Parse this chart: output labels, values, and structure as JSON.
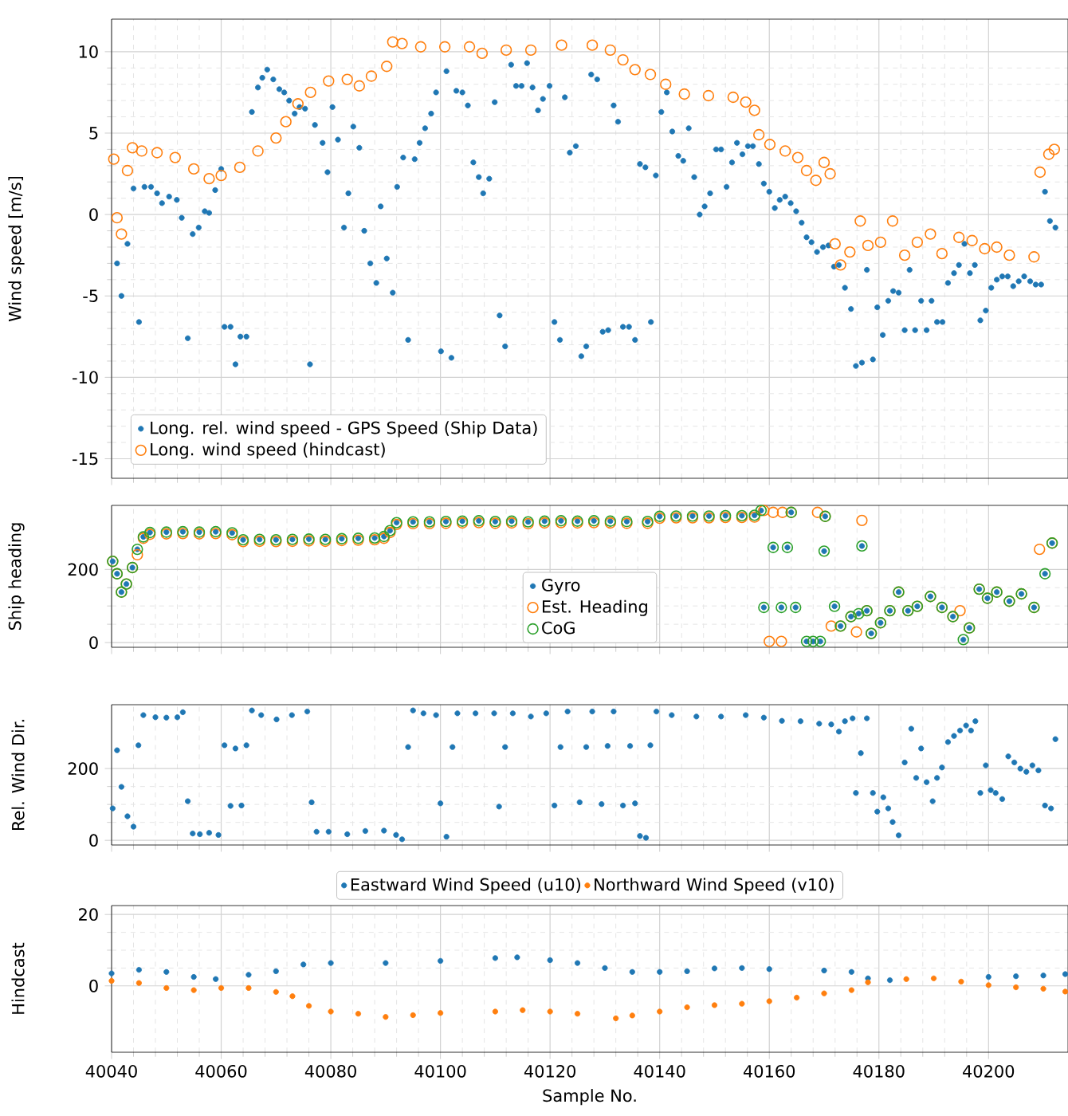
{
  "chart_data": [
    {
      "type": "scatter",
      "ylabel": "Wind speed [m/s]",
      "xlim": [
        40040,
        40214.5
      ],
      "ylim": [
        -16.2,
        12
      ],
      "xticks": [
        40040,
        40060,
        40080,
        40100,
        40120,
        40140,
        40160,
        40180,
        40200
      ],
      "yticks": [
        -15,
        -10,
        -5,
        0,
        5,
        10
      ],
      "tick_labels": "y",
      "grid": true,
      "legend": "bottom left",
      "series": [
        {
          "name": "Long. rel. wind speed - GPS Speed (Ship Data)",
          "color": "#1f77b4",
          "marker": "dot",
          "x": [
            40041,
            40041.8,
            40042.9,
            40044,
            40045,
            40046,
            40047.2,
            40048.3,
            40049.2,
            40050.5,
            40051.9,
            40052.8,
            40053.9,
            40054.8,
            40055.9,
            40057,
            40057.8,
            40058.9,
            40060,
            40060.6,
            40061.7,
            40062.6,
            40063.5,
            40064.6,
            40065.6,
            40066.7,
            40067.5,
            40068.4,
            40069.5,
            40070.6,
            40071.5,
            40072.4,
            40073.4,
            40074.3,
            40075.3,
            40076.2,
            40077.1,
            40078.5,
            40079.4,
            40080.3,
            40081.3,
            40082.4,
            40083.2,
            40084.1,
            40085.2,
            40086.1,
            40087.2,
            40088.3,
            40089.1,
            40090.2,
            40091.3,
            40092.1,
            40093.2,
            40094.1,
            40095.3,
            40096.2,
            40097.2,
            40098.3,
            40099.2,
            40100.1,
            40101.1,
            40102,
            40102.9,
            40104,
            40105,
            40106,
            40107,
            40107.8,
            40108.9,
            40109.9,
            40110.8,
            40111.8,
            40112.9,
            40113.8,
            40114.8,
            40115.8,
            40116.8,
            40117.8,
            40118.7,
            40119.9,
            40120.8,
            40121.8,
            40122.7,
            40123.6,
            40124.7,
            40125.7,
            40126.6,
            40127.5,
            40128.6,
            40129.6,
            40130.6,
            40131.6,
            40132.4,
            40133.3,
            40134.4,
            40135.5,
            40136.4,
            40137.4,
            40138.4,
            40139.3,
            40140.3,
            40141.3,
            40142.3,
            40143.4,
            40144.3,
            40145.3,
            40146.3,
            40147.3,
            40148.2,
            40149.2,
            40150.3,
            40151.2,
            40152.2,
            40153.2,
            40154.1,
            40155.1,
            40156.1,
            40157,
            40158.1,
            40159,
            40160,
            40161,
            40161.9,
            40162.9,
            40163.9,
            40164.9,
            40165.9,
            40166.8,
            40167.7,
            40168.7,
            40169.8,
            40170.8,
            40171.8,
            40172.7,
            40173.8,
            40174.9,
            40175.8,
            40176.9,
            40177.8,
            40178.9,
            40179.7,
            40180.7,
            40181.7,
            40182.6,
            40183.6,
            40184.7,
            40185.6,
            40186.6,
            40187.7,
            40188.7,
            40189.6,
            40190.6,
            40191.6,
            40192.6,
            40193.7,
            40194.6,
            40195.6,
            40196.6,
            40197.5,
            40198.5,
            40199.5,
            40200.5,
            40201.5,
            40202.5,
            40203.5,
            40204.5,
            40205.5,
            40206.5,
            40207.6,
            40208.6,
            40209.6,
            40210.3,
            40211.2,
            40212.2
          ],
          "values": [
            -3.0,
            -5.0,
            -1.8,
            1.6,
            -6.6,
            1.7,
            1.7,
            1.3,
            0.7,
            1.1,
            0.9,
            -0.2,
            -7.6,
            -1.2,
            -0.8,
            0.2,
            0.1,
            1.5,
            2.8,
            -6.9,
            -6.9,
            -9.2,
            -7.5,
            -7.5,
            6.3,
            7.8,
            8.4,
            8.9,
            8.3,
            7.7,
            7.5,
            7.0,
            6.2,
            6.6,
            6.5,
            -9.2,
            5.5,
            4.4,
            2.6,
            6.6,
            4.6,
            -0.8,
            1.3,
            5.4,
            4.1,
            -1.0,
            -3.0,
            -4.2,
            0.5,
            -2.7,
            -4.8,
            1.7,
            3.5,
            -7.7,
            3.4,
            4.4,
            5.3,
            6.2,
            7.5,
            -8.4,
            8.8,
            -8.8,
            7.6,
            7.5,
            6.7,
            3.2,
            2.3,
            1.3,
            2.2,
            6.9,
            -6.2,
            -8.1,
            9.2,
            7.9,
            7.9,
            9.3,
            7.8,
            6.4,
            7.1,
            7.9,
            -6.6,
            -7.7,
            7.2,
            3.8,
            4.2,
            -8.7,
            -8.1,
            8.6,
            8.3,
            -7.2,
            -7.1,
            6.7,
            5.7,
            -6.9,
            -6.9,
            -7.7,
            3.1,
            2.9,
            -6.6,
            2.4,
            6.3,
            7.5,
            5.1,
            3.6,
            3.3,
            5.3,
            2.3,
            0.0,
            0.5,
            1.3,
            4.0,
            4.0,
            1.7,
            3.2,
            4.4,
            3.7,
            4.2,
            4.2,
            3.1,
            1.9,
            1.4,
            0.4,
            0.9,
            1.1,
            0.7,
            0.2,
            -0.5,
            -1.4,
            -1.7,
            -2.3,
            -2.0,
            -1.9,
            -3.2,
            -3.1,
            -4.5,
            -5.8,
            -9.3,
            -9.1,
            -3.4,
            -8.9,
            -5.7,
            -7.4,
            -5.3,
            -4.7,
            -4.8,
            -7.1,
            -3.4,
            -7.1,
            -5.3,
            -7.1,
            -5.3,
            -6.6,
            -6.6,
            -4.2,
            -3.6,
            -3.1,
            -1.8,
            -3.6,
            -3.1,
            -6.5,
            -5.9,
            -4.5,
            -4.0,
            -3.8,
            -3.8,
            -4.4,
            -4.1,
            -3.8,
            -4.1,
            -4.3,
            -4.3,
            1.4,
            -0.4,
            -0.8
          ]
        },
        {
          "name": "Long. wind speed (hindcast)",
          "color": "#ff7f0e",
          "marker": "circle",
          "x": [
            40040.4,
            40041,
            40041.8,
            40042.9,
            40043.8,
            40045.5,
            40048.3,
            40051.6,
            40055,
            40057.8,
            40060,
            40063.4,
            40066.7,
            40070,
            40071.8,
            40074,
            40076.3,
            40079.6,
            40083,
            40085.2,
            40087.4,
            40090.2,
            40091.3,
            40093,
            40096.4,
            40100.8,
            40105.3,
            40107.6,
            40112,
            40116.5,
            40122.1,
            40127.7,
            40131,
            40133.3,
            40135.5,
            40138.3,
            40141.1,
            40144.5,
            40148.9,
            40153.4,
            40155.7,
            40157.3,
            40158.1,
            40160.1,
            40162.9,
            40165.2,
            40166.8,
            40168.5,
            40170,
            40171.1,
            40172,
            40173,
            40174.7,
            40176.6,
            40178,
            40180.3,
            40182.5,
            40184.7,
            40187,
            40189.4,
            40191.5,
            40194.6,
            40197,
            40199.3,
            40201.5,
            40203.8,
            40208.3,
            40209.4,
            40211,
            40212
          ],
          "values": [
            3.4,
            -0.2,
            -1.2,
            2.7,
            4.1,
            3.9,
            3.8,
            3.5,
            2.8,
            2.2,
            2.4,
            2.9,
            3.9,
            4.7,
            5.7,
            6.8,
            7.5,
            8.2,
            8.3,
            7.9,
            8.5,
            9.1,
            10.6,
            10.5,
            10.3,
            10.3,
            10.3,
            9.9,
            10.1,
            10.1,
            10.4,
            10.4,
            10.1,
            9.5,
            8.9,
            8.6,
            8.0,
            7.4,
            7.3,
            7.2,
            6.9,
            6.4,
            4.9,
            4.3,
            3.9,
            3.5,
            2.7,
            2.1,
            3.2,
            2.5,
            -1.8,
            -3.1,
            -2.3,
            -0.4,
            -1.9,
            -1.7,
            -0.4,
            -2.5,
            -1.7,
            -1.2,
            -2.4,
            -1.4,
            -1.6,
            -2.1,
            -2.0,
            -2.5,
            -2.6,
            2.6,
            3.7,
            4.0
          ]
        }
      ]
    },
    {
      "type": "scatter",
      "ylabel": "Ship heading",
      "xlim": [
        40040,
        40214.5
      ],
      "ylim": [
        -13,
        375
      ],
      "xticks": [
        40040,
        40060,
        40080,
        40100,
        40120,
        40140,
        40160,
        40180,
        40200
      ],
      "yticks": [
        0,
        200
      ],
      "tick_labels": "y",
      "grid": true,
      "legend": "bottom",
      "series": [
        {
          "name": "Gyro",
          "color": "#1f77b4",
          "marker": "dot",
          "x": [
            40040.2,
            40041,
            40041.8,
            40042.7,
            40043.8,
            40044.7,
            40045.8,
            40047,
            40050,
            40053,
            40056,
            40059,
            40062,
            40064,
            40067,
            40070,
            40073,
            40076,
            40079,
            40082,
            40085,
            40088,
            40089.7,
            40090.8,
            40092,
            40095,
            40098,
            40101,
            40104,
            40107,
            40110,
            40113,
            40116,
            40119,
            40122,
            40125,
            40128,
            40131,
            40134,
            40137.8,
            40140,
            40143,
            40146,
            40149,
            40152,
            40155,
            40157.3,
            40158.5,
            40159,
            40160.7,
            40162.2,
            40163.3,
            40164,
            40164.8,
            40166.8,
            40168,
            40169.3,
            40170,
            40170.2,
            40171.9,
            40173,
            40174.9,
            40176.3,
            40176.9,
            40177.8,
            40178.6,
            40180.3,
            40182,
            40183.6,
            40185.3,
            40187,
            40189.4,
            40191.5,
            40193.5,
            40195.4,
            40196.5,
            40198.3,
            40199.8,
            40201.5,
            40203.8,
            40206,
            40208.3,
            40210.3,
            40211.6
          ],
          "values": [
            222,
            188,
            138,
            160,
            205,
            255,
            289,
            301,
            302,
            303,
            302,
            303,
            300,
            281,
            282,
            281,
            282,
            283,
            282,
            284,
            285,
            286,
            290,
            306,
            328,
            330,
            330,
            331,
            332,
            333,
            331,
            332,
            330,
            332,
            333,
            332,
            333,
            332,
            331,
            331,
            345,
            346,
            346,
            346,
            347,
            347,
            348,
            361,
            96,
            260,
            96,
            260,
            356,
            96,
            3,
            3,
            3,
            250,
            345,
            99,
            45,
            71,
            79,
            264,
            87,
            25,
            54,
            87,
            138,
            87,
            99,
            126,
            96,
            71,
            8,
            40,
            146,
            121,
            138,
            113,
            133,
            96,
            188,
            272
          ]
        },
        {
          "name": "Est. Heading",
          "color": "#ff7f0e",
          "marker": "circle",
          "x": [
            40040.2,
            40041,
            40041.8,
            40042.7,
            40043.8,
            40044.7,
            40045.8,
            40047,
            40050,
            40053,
            40056,
            40059,
            40062,
            40064,
            40067,
            40070,
            40073,
            40076,
            40079,
            40082,
            40085,
            40088,
            40089.7,
            40090.8,
            40092,
            40095,
            40098,
            40101,
            40104,
            40107,
            40110,
            40113,
            40116,
            40119,
            40122,
            40125,
            40128,
            40131,
            40134,
            40137.8,
            40140,
            40143,
            40146,
            40149,
            40152,
            40155,
            40157.3,
            40159,
            40160,
            40160.7,
            40162.2,
            40162.4,
            40164,
            40168.8,
            40170.2,
            40171.3,
            40173,
            40174.9,
            40175.9,
            40176.9,
            40177.8,
            40178.6,
            40180.3,
            40182,
            40183.6,
            40185.3,
            40187,
            40189.4,
            40191.5,
            40193.5,
            40194.8,
            40196.5,
            40198.3,
            40199.8,
            40201.5,
            40203.8,
            40206,
            40208.3,
            40209.3,
            40211.6
          ],
          "values": [
            222,
            188,
            138,
            160,
            205,
            240,
            285,
            296,
            297,
            298,
            297,
            298,
            295,
            276,
            277,
            276,
            277,
            278,
            277,
            279,
            280,
            281,
            285,
            301,
            323,
            325,
            325,
            326,
            327,
            328,
            326,
            327,
            325,
            327,
            328,
            327,
            328,
            327,
            326,
            326,
            340,
            341,
            341,
            341,
            342,
            342,
            343,
            361,
            3,
            356,
            3,
            356,
            356,
            356,
            345,
            45,
            45,
            71,
            29,
            334,
            87,
            25,
            54,
            87,
            138,
            87,
            99,
            126,
            96,
            71,
            87,
            40,
            146,
            121,
            138,
            113,
            133,
            96,
            255,
            272
          ]
        },
        {
          "name": "CoG",
          "color": "#2ca02c",
          "marker": "circle",
          "x": [
            40040.2,
            40041,
            40041.8,
            40042.7,
            40043.8,
            40044.7,
            40045.8,
            40047,
            40050,
            40053,
            40056,
            40059,
            40062,
            40064,
            40067,
            40070,
            40073,
            40076,
            40079,
            40082,
            40085,
            40088,
            40089.7,
            40090.8,
            40092,
            40095,
            40098,
            40101,
            40104,
            40107,
            40110,
            40113,
            40116,
            40119,
            40122,
            40125,
            40128,
            40131,
            40134,
            40137.8,
            40140,
            40143,
            40146,
            40149,
            40152,
            40155,
            40157.3,
            40158.5,
            40159,
            40160.7,
            40162.2,
            40163.3,
            40164,
            40164.8,
            40166.8,
            40168,
            40169.3,
            40170,
            40170.2,
            40171.9,
            40173,
            40174.9,
            40176.3,
            40176.9,
            40177.8,
            40178.6,
            40180.3,
            40182,
            40183.6,
            40185.3,
            40187,
            40189.4,
            40191.5,
            40193.5,
            40195.4,
            40196.5,
            40198.3,
            40199.8,
            40201.5,
            40203.8,
            40206,
            40208.3,
            40210.3,
            40211.6
          ],
          "values": [
            222,
            188,
            138,
            160,
            205,
            255,
            289,
            301,
            302,
            303,
            302,
            303,
            300,
            281,
            282,
            281,
            282,
            283,
            282,
            284,
            285,
            286,
            290,
            306,
            328,
            330,
            330,
            331,
            332,
            333,
            331,
            332,
            330,
            332,
            333,
            332,
            333,
            332,
            331,
            331,
            345,
            346,
            346,
            346,
            347,
            347,
            348,
            361,
            96,
            260,
            96,
            260,
            356,
            96,
            3,
            3,
            3,
            250,
            345,
            99,
            45,
            71,
            79,
            264,
            87,
            25,
            54,
            87,
            138,
            87,
            99,
            126,
            96,
            71,
            8,
            40,
            146,
            121,
            138,
            113,
            133,
            96,
            188,
            272
          ]
        }
      ]
    },
    {
      "type": "scatter",
      "ylabel": "Rel. Wind Dir.",
      "xlim": [
        40040,
        40214.5
      ],
      "ylim": [
        -13,
        378
      ],
      "xticks": [
        40040,
        40060,
        40080,
        40100,
        40120,
        40140,
        40160,
        40180,
        40200
      ],
      "yticks": [
        0,
        200
      ],
      "tick_labels": "y",
      "grid": true,
      "series": [
        {
          "color": "#1f77b4",
          "marker": "dot",
          "x": [
            40040.2,
            40041,
            40041.8,
            40042.9,
            40044,
            40044.9,
            40045.8,
            40048,
            40050,
            40052,
            40053,
            40053.9,
            40054.8,
            40056.1,
            40057.8,
            40059.5,
            40060.6,
            40061.7,
            40062.6,
            40063.7,
            40064.6,
            40065.6,
            40067.3,
            40070.1,
            40072.9,
            40075.7,
            40076.5,
            40077.4,
            40079.6,
            40083,
            40086.3,
            40089.7,
            40091.9,
            40093,
            40094.1,
            40095,
            40096.9,
            40099.2,
            40100,
            40101.1,
            40102.2,
            40103.1,
            40106.4,
            40109.8,
            40110.7,
            40111.8,
            40113.2,
            40116.5,
            40119.3,
            40120.8,
            40121.9,
            40123.2,
            40125.4,
            40126.6,
            40127.7,
            40129.4,
            40130.5,
            40131.6,
            40133.3,
            40134.6,
            40135.5,
            40136.4,
            40137.5,
            40138.3,
            40139.4,
            40142.2,
            40146.7,
            40151.2,
            40155.7,
            40159,
            40162.3,
            40165.7,
            40169.1,
            40171.3,
            40172.7,
            40173.8,
            40175.2,
            40175.8,
            40176.7,
            40177.8,
            40178.9,
            40179.7,
            40180.8,
            40181.7,
            40182.5,
            40183.6,
            40184.7,
            40185.9,
            40186.8,
            40187.7,
            40188.7,
            40189.8,
            40190.6,
            40191.5,
            40192.6,
            40193.7,
            40194.8,
            40195.9,
            40196.8,
            40197.6,
            40198.5,
            40199.5,
            40200.4,
            40201.3,
            40202.5,
            40203.6,
            40204.7,
            40205.8,
            40206.9,
            40208,
            40209.1,
            40210.3,
            40211.4,
            40212.2
          ],
          "values": [
            89,
            251,
            149,
            67,
            38,
            265,
            349,
            343,
            342,
            343,
            357,
            109,
            19,
            17,
            21,
            15,
            265,
            96,
            256,
            97,
            265,
            362,
            349,
            337,
            349,
            359,
            106,
            24,
            24,
            17,
            26,
            27,
            15,
            3,
            260,
            362,
            354,
            349,
            103,
            10,
            260,
            354,
            354,
            354,
            94,
            260,
            354,
            345,
            354,
            97,
            260,
            359,
            106,
            260,
            359,
            101,
            263,
            359,
            97,
            263,
            103,
            12,
            7,
            265,
            359,
            349,
            345,
            345,
            349,
            342,
            333,
            332,
            325,
            323,
            303,
            332,
            340,
            132,
            243,
            340,
            132,
            80,
            120,
            89,
            51,
            14,
            217,
            311,
            174,
            256,
            162,
            109,
            174,
            203,
            274,
            291,
            306,
            320,
            306,
            332,
            132,
            209,
            140,
            132,
            115,
            234,
            217,
            200,
            191,
            209,
            195,
            97,
            89,
            282
          ]
        }
      ]
    },
    {
      "type": "scatter",
      "ylabel": "Hindcast",
      "xlabel": "Sample No.",
      "xlim": [
        40040,
        40214.5
      ],
      "ylim": [
        -18.6,
        22.5
      ],
      "xticks": [
        40040,
        40060,
        40080,
        40100,
        40120,
        40140,
        40160,
        40180,
        40200
      ],
      "yticks": [
        0,
        20
      ],
      "grid": true,
      "legend": "top",
      "series": [
        {
          "name": "Eastward Wind Speed (u10)",
          "color": "#1f77b4",
          "marker": "dot",
          "x": [
            40040,
            40045,
            40050,
            40055,
            40059,
            40065,
            40070,
            40075,
            40080,
            40090,
            40100,
            40110,
            40114,
            40120,
            40125,
            40130,
            40135,
            40140,
            40145,
            40150,
            40155,
            40160,
            40170,
            40175,
            40178,
            40182,
            40185,
            40190,
            40200,
            40205,
            40210,
            40214
          ],
          "values": [
            3.5,
            4.5,
            3.9,
            2.5,
            1.9,
            3.1,
            4.1,
            6.0,
            6.4,
            6.4,
            7.0,
            7.8,
            8.0,
            7.2,
            6.4,
            5.0,
            3.9,
            3.9,
            4.1,
            4.9,
            5.0,
            4.7,
            4.3,
            3.9,
            2.1,
            1.6,
            null,
            null,
            2.5,
            2.7,
            2.9,
            3.3
          ]
        },
        {
          "name": "Northward Wind Speed (v10)",
          "color": "#ff7f0e",
          "marker": "dot",
          "x": [
            40040,
            40045,
            40050,
            40055,
            40060,
            40065,
            40070,
            40073,
            40076,
            40080,
            40085,
            40090,
            40095,
            40100,
            40110,
            40115,
            40120,
            40125,
            40132,
            40135,
            40140,
            40145,
            40150,
            40155,
            40160,
            40165,
            40170,
            40175,
            40178,
            40185,
            40190,
            40195,
            40200,
            40205,
            40210,
            40214
          ],
          "values": [
            1.4,
            0.8,
            -0.6,
            -1.2,
            -0.6,
            -0.6,
            -1.7,
            -2.9,
            -5.6,
            -7.2,
            -7.8,
            -8.7,
            -8.2,
            -7.6,
            -7.2,
            -6.8,
            -7.2,
            -7.8,
            -9.1,
            -8.3,
            -7.2,
            -6.0,
            -5.4,
            -5.0,
            -4.3,
            -3.3,
            -2.1,
            -1.2,
            1.0,
            1.9,
            2.1,
            1.2,
            0.2,
            -0.4,
            -0.8,
            -1.6
          ]
        }
      ]
    }
  ]
}
